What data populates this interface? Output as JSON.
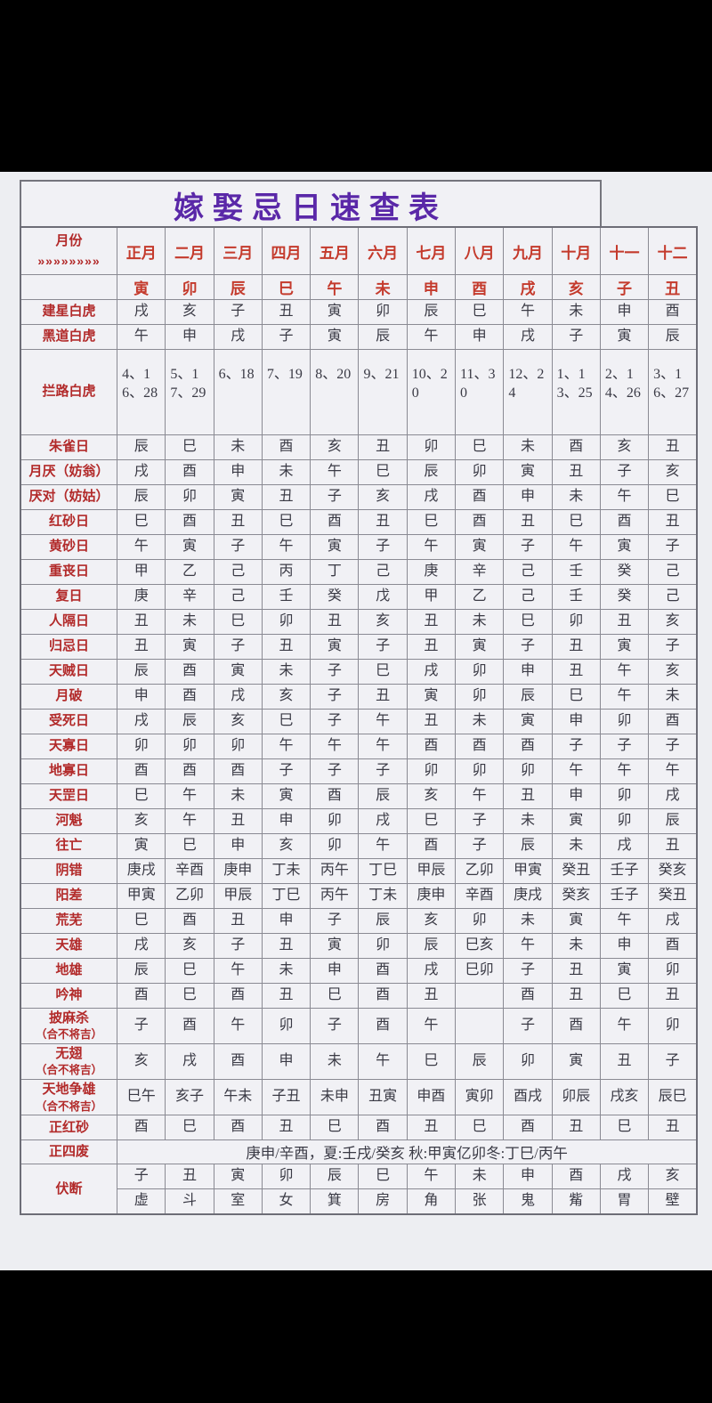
{
  "title": "嫁娶忌日速查表",
  "colors": {
    "title_purple": "#5a28a8",
    "label_red": "#b22a2a",
    "month_red": "#c43a2c",
    "cell_ink": "#3a3a45",
    "photo_bg": "#edeef2",
    "frame_black": "#000000"
  },
  "table": {
    "corner_label": "月份",
    "corner_arrows": "»»»»»»»»",
    "months": [
      "正月",
      "二月",
      "三月",
      "四月",
      "五月",
      "六月",
      "七月",
      "八月",
      "九月",
      "十月",
      "十一",
      "十二"
    ],
    "branches": [
      "寅",
      "卯",
      "辰",
      "巳",
      "午",
      "未",
      "申",
      "酉",
      "戌",
      "亥",
      "子",
      "丑"
    ],
    "rows": [
      {
        "label": "建星白虎",
        "cells": [
          "戌",
          "亥",
          "子",
          "丑",
          "寅",
          "卯",
          "辰",
          "巳",
          "午",
          "未",
          "申",
          "酉"
        ]
      },
      {
        "label": "黑道白虎",
        "cells": [
          "午",
          "申",
          "戌",
          "子",
          "寅",
          "辰",
          "午",
          "申",
          "戌",
          "子",
          "寅",
          "辰"
        ]
      },
      {
        "label": "拦路白虎",
        "tall": true,
        "cells": [
          "4、16、28",
          "5、17、29",
          "6、18",
          "7、19",
          "8、20",
          "9、21",
          "10、20",
          "11、30",
          "12、24",
          "1、13、25",
          "2、14、26",
          "3、16、27"
        ]
      },
      {
        "label": "朱雀日",
        "cells": [
          "辰",
          "巳",
          "未",
          "酉",
          "亥",
          "丑",
          "卯",
          "巳",
          "未",
          "酉",
          "亥",
          "丑"
        ]
      },
      {
        "label": "月厌（妨翁）",
        "cells": [
          "戌",
          "酉",
          "申",
          "未",
          "午",
          "巳",
          "辰",
          "卯",
          "寅",
          "丑",
          "子",
          "亥"
        ]
      },
      {
        "label": "厌对（妨姑）",
        "cells": [
          "辰",
          "卯",
          "寅",
          "丑",
          "子",
          "亥",
          "戌",
          "酉",
          "申",
          "未",
          "午",
          "巳"
        ]
      },
      {
        "label": "红砂日",
        "cells": [
          "巳",
          "酉",
          "丑",
          "巳",
          "酉",
          "丑",
          "巳",
          "酉",
          "丑",
          "巳",
          "酉",
          "丑"
        ]
      },
      {
        "label": "黄砂日",
        "cells": [
          "午",
          "寅",
          "子",
          "午",
          "寅",
          "子",
          "午",
          "寅",
          "子",
          "午",
          "寅",
          "子"
        ]
      },
      {
        "label": "重丧日",
        "cells": [
          "甲",
          "乙",
          "己",
          "丙",
          "丁",
          "己",
          "庚",
          "辛",
          "己",
          "壬",
          "癸",
          "己"
        ]
      },
      {
        "label": "复日",
        "cells": [
          "庚",
          "辛",
          "己",
          "壬",
          "癸",
          "戊",
          "甲",
          "乙",
          "己",
          "壬",
          "癸",
          "己"
        ]
      },
      {
        "label": "人隔日",
        "cells": [
          "丑",
          "未",
          "巳",
          "卯",
          "丑",
          "亥",
          "丑",
          "未",
          "巳",
          "卯",
          "丑",
          "亥"
        ]
      },
      {
        "label": "归忌日",
        "cells": [
          "丑",
          "寅",
          "子",
          "丑",
          "寅",
          "子",
          "丑",
          "寅",
          "子",
          "丑",
          "寅",
          "子"
        ]
      },
      {
        "label": "天贼日",
        "cells": [
          "辰",
          "酉",
          "寅",
          "未",
          "子",
          "巳",
          "戌",
          "卯",
          "申",
          "丑",
          "午",
          "亥"
        ]
      },
      {
        "label": "月破",
        "cells": [
          "申",
          "酉",
          "戌",
          "亥",
          "子",
          "丑",
          "寅",
          "卯",
          "辰",
          "巳",
          "午",
          "未"
        ]
      },
      {
        "label": "受死日",
        "cells": [
          "戌",
          "辰",
          "亥",
          "巳",
          "子",
          "午",
          "丑",
          "未",
          "寅",
          "申",
          "卯",
          "酉"
        ]
      },
      {
        "label": "天寡日",
        "cells": [
          "卯",
          "卯",
          "卯",
          "午",
          "午",
          "午",
          "酉",
          "酉",
          "酉",
          "子",
          "子",
          "子"
        ]
      },
      {
        "label": "地寡日",
        "cells": [
          "酉",
          "酉",
          "酉",
          "子",
          "子",
          "子",
          "卯",
          "卯",
          "卯",
          "午",
          "午",
          "午"
        ]
      },
      {
        "label": "天罡日",
        "cells": [
          "巳",
          "午",
          "未",
          "寅",
          "酉",
          "辰",
          "亥",
          "午",
          "丑",
          "申",
          "卯",
          "戌"
        ]
      },
      {
        "label": "河魁",
        "cells": [
          "亥",
          "午",
          "丑",
          "申",
          "卯",
          "戌",
          "巳",
          "子",
          "未",
          "寅",
          "卯",
          "辰"
        ]
      },
      {
        "label": "往亡",
        "cells": [
          "寅",
          "巳",
          "申",
          "亥",
          "卯",
          "午",
          "酉",
          "子",
          "辰",
          "未",
          "戌",
          "丑"
        ]
      },
      {
        "label": "阴错",
        "cells": [
          "庚戌",
          "辛酉",
          "庚申",
          "丁未",
          "丙午",
          "丁巳",
          "甲辰",
          "乙卯",
          "甲寅",
          "癸丑",
          "壬子",
          "癸亥"
        ]
      },
      {
        "label": "阳差",
        "cells": [
          "甲寅",
          "乙卯",
          "甲辰",
          "丁巳",
          "丙午",
          "丁未",
          "庚申",
          "辛酉",
          "庚戌",
          "癸亥",
          "壬子",
          "癸丑"
        ]
      },
      {
        "label": "荒芜",
        "cells": [
          "巳",
          "酉",
          "丑",
          "申",
          "子",
          "辰",
          "亥",
          "卯",
          "未",
          "寅",
          "午",
          "戌"
        ]
      },
      {
        "label": "天雄",
        "cells": [
          "戌",
          "亥",
          "子",
          "丑",
          "寅",
          "卯",
          "辰",
          "巳亥",
          "午",
          "未",
          "申",
          "酉"
        ]
      },
      {
        "label": "地雄",
        "cells": [
          "辰",
          "巳",
          "午",
          "未",
          "申",
          "酉",
          "戌",
          "巳卯",
          "子",
          "丑",
          "寅",
          "卯"
        ]
      },
      {
        "label": "吟神",
        "cells": [
          "酉",
          "巳",
          "酉",
          "丑",
          "巳",
          "酉",
          "丑",
          "",
          "酉",
          "丑",
          "巳",
          "丑"
        ]
      },
      {
        "label": "披麻杀",
        "sub": "（合不将吉）",
        "cells": [
          "子",
          "酉",
          "午",
          "卯",
          "子",
          "酉",
          "午",
          "",
          "子",
          "酉",
          "午",
          "卯"
        ]
      },
      {
        "label": "无翅",
        "sub": "（合不将吉）",
        "cells": [
          "亥",
          "戌",
          "酉",
          "申",
          "未",
          "午",
          "巳",
          "辰",
          "卯",
          "寅",
          "丑",
          "子"
        ]
      },
      {
        "label": "天地争雄",
        "sub": "（合不将吉）",
        "cells": [
          "巳午",
          "亥子",
          "午未",
          "子丑",
          "未申",
          "丑寅",
          "申酉",
          "寅卯",
          "酉戌",
          "卯辰",
          "戌亥",
          "辰巳"
        ]
      },
      {
        "label": "正红砂",
        "cells": [
          "酉",
          "巳",
          "酉",
          "丑",
          "巳",
          "酉",
          "丑",
          "巳",
          "酉",
          "丑",
          "巳",
          "丑"
        ]
      },
      {
        "label": "正四废",
        "span_text": "庚申/辛酉，夏:壬戌/癸亥 秋:甲寅亿卯冬:丁巳/丙午"
      },
      {
        "label": "伏断",
        "cells": [
          "子",
          "丑",
          "寅",
          "卯",
          "辰",
          "巳",
          "午",
          "未",
          "申",
          "酉",
          "戌",
          "亥"
        ],
        "cells2": [
          "虚",
          "斗",
          "室",
          "女",
          "箕",
          "房",
          "角",
          "张",
          "鬼",
          "觜",
          "胃",
          "壁"
        ]
      }
    ]
  }
}
